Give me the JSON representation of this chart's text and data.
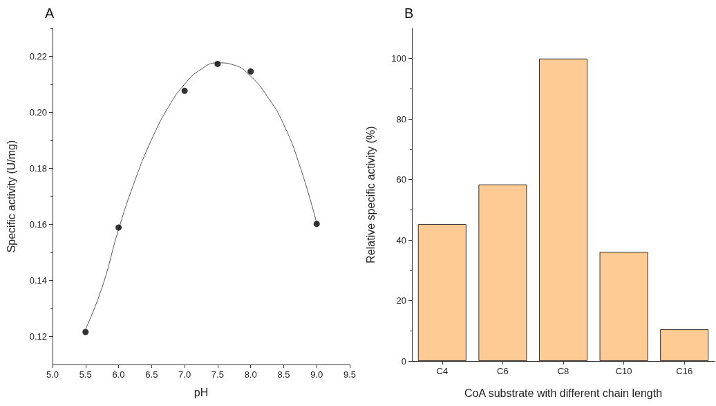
{
  "chart_data": [
    {
      "type": "scatter",
      "title": "A",
      "xlabel": "pH",
      "ylabel": "Specific activity (U/mg)",
      "xlim": [
        5.0,
        9.5
      ],
      "xticks": [
        {
          "value": 5,
          "label": "5.0"
        },
        5.5,
        {
          "value": 6,
          "label": "6.0"
        },
        6.5,
        {
          "value": 7,
          "label": "7.0"
        },
        7.5,
        {
          "value": 8,
          "label": "8.0"
        },
        8.5,
        {
          "value": 9,
          "label": "9.0"
        },
        9.5
      ],
      "ylim": [
        0.11,
        0.23
      ],
      "yticks": [
        0.12,
        0.14,
        0.16,
        {
          "value": 0.18,
          "label": "0.18"
        },
        {
          "value": 0.2,
          "label": "0.20"
        },
        0.22
      ],
      "grid": false,
      "marker": "circle",
      "series": [
        {
          "type": "scatter",
          "color": "#000000",
          "x": [
            5.5,
            6.0,
            7.0,
            7.5,
            8.0,
            9.0
          ],
          "values": [
            0.1216,
            0.1589,
            0.2077,
            0.2173,
            0.2146,
            0.1602
          ]
        },
        {
          "type": "line",
          "color": "#555555",
          "marker": "none",
          "line_style": "solid",
          "x": [
            5.5,
            5.75,
            6.0,
            6.25,
            6.5,
            6.75,
            7.0,
            7.25,
            7.5,
            7.75,
            8.0,
            8.25,
            8.5,
            8.75,
            9.0
          ],
          "values": [
            0.1226,
            0.1375,
            0.1582,
            0.1758,
            0.1903,
            0.2017,
            0.2101,
            0.2154,
            0.2177,
            0.2169,
            0.2129,
            0.2058,
            0.1957,
            0.1805,
            0.1605
          ]
        }
      ]
    },
    {
      "type": "bar",
      "title": "B",
      "xlabel": "CoA substrate with different chain length",
      "ylabel": "Relative specific activity (%)",
      "categories": [
        "C4",
        "C6",
        "C8",
        "C10",
        "C16"
      ],
      "values": [
        45.3,
        58.4,
        100,
        36.1,
        10.5
      ],
      "color": "#fdcb93",
      "ylim": [
        0,
        110
      ],
      "yticks": [
        0,
        20,
        40,
        60,
        80,
        100
      ],
      "grid": false
    }
  ]
}
